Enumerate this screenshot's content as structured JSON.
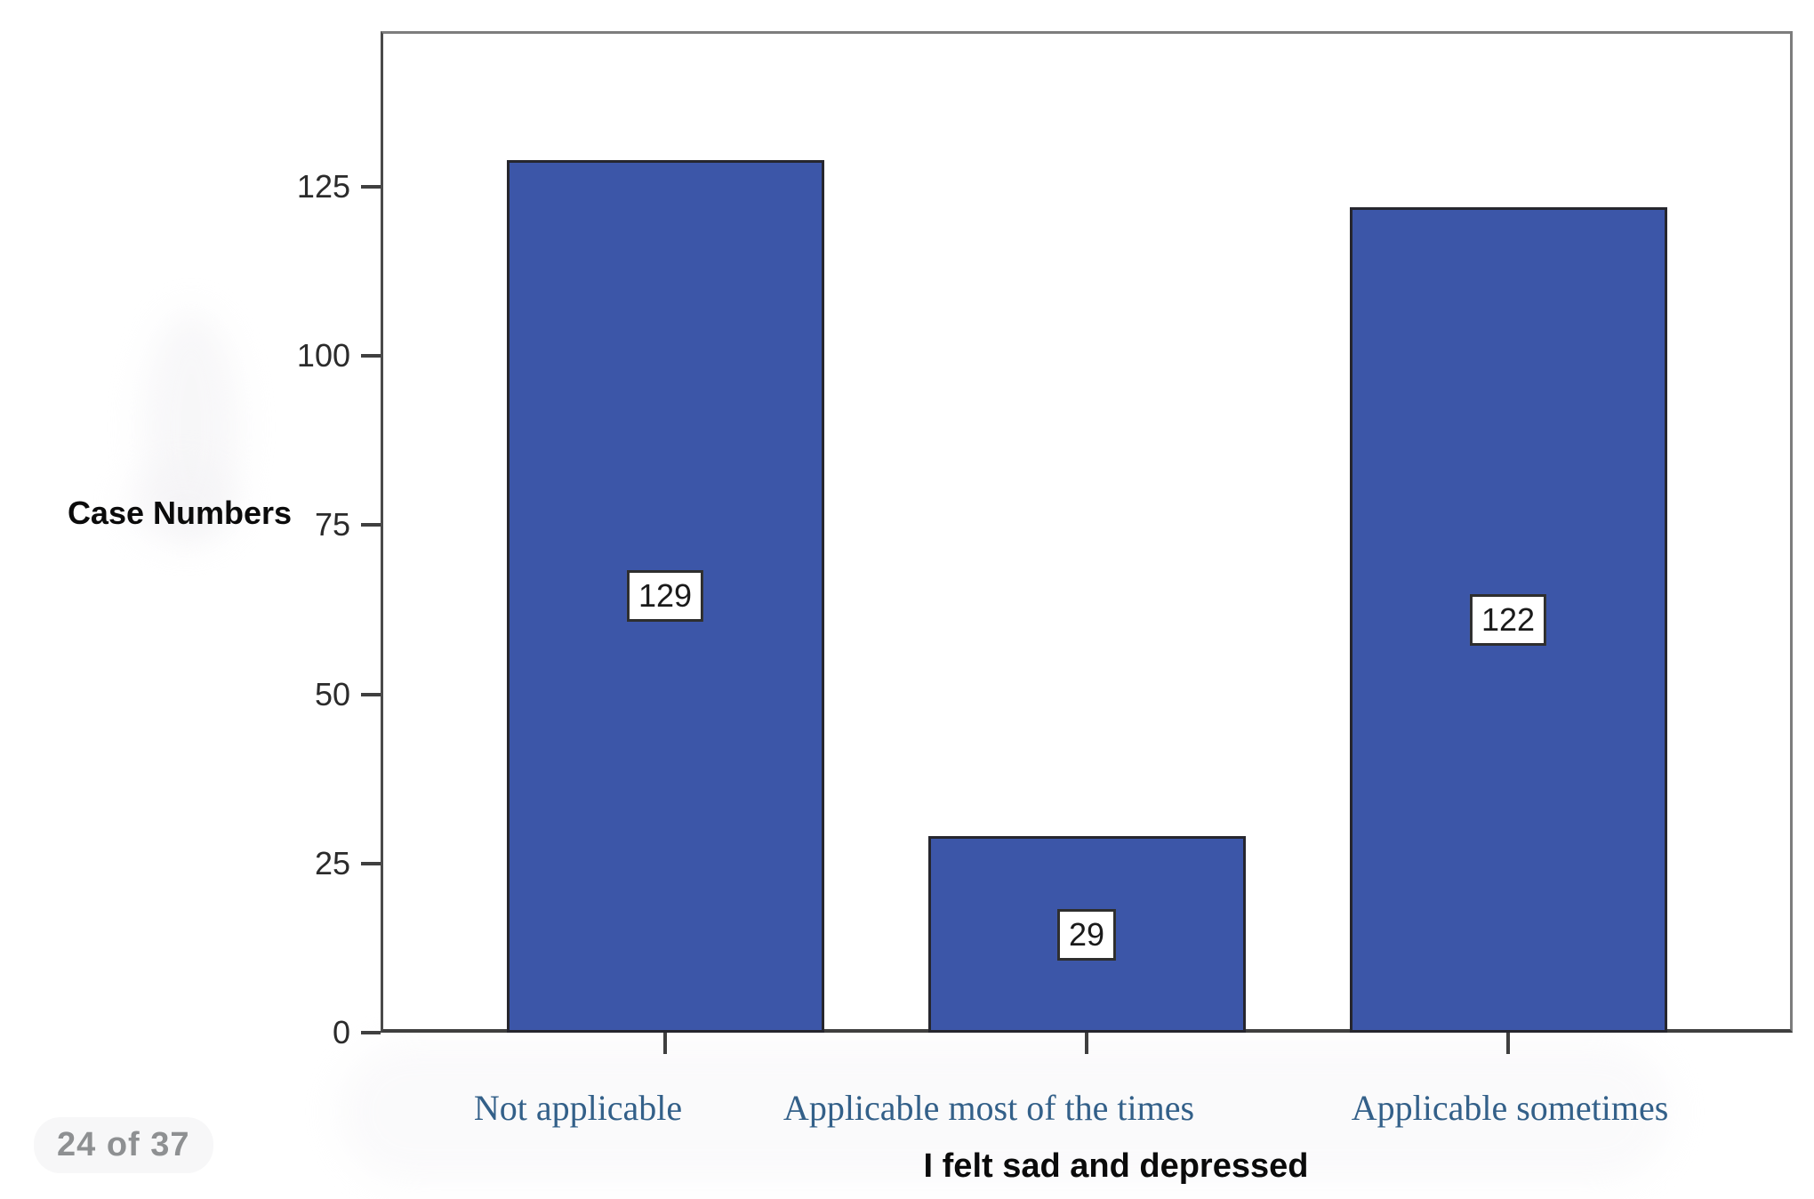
{
  "page": {
    "page_indicator": "24 of 37"
  },
  "chart_data": {
    "type": "bar",
    "title": "",
    "categories": [
      "Not applicable",
      "Applicable most of the times",
      "Applicable sometimes"
    ],
    "values": [
      129,
      29,
      122
    ],
    "value_labels": [
      "129",
      "29",
      "122"
    ],
    "xlabel": "I felt sad and depressed",
    "ylabel": "Case Numbers",
    "yticks": [
      0,
      25,
      50,
      75,
      100,
      125
    ],
    "ylim": [
      0,
      148
    ],
    "grid": false,
    "legend": "none",
    "colors": {
      "bar_fill": "#3C56A8",
      "bar_border": "#26262E",
      "category_label": "#336089",
      "frame_border": "#7D7D7D",
      "axis_line": "#3F3F3F",
      "tick_label": "#2B2B2B",
      "axis_title": "#0B0B0B",
      "value_label_bg": "#FFFFFF",
      "value_label_border": "#2E2E2E",
      "page_indicator_text": "#8E9092"
    }
  }
}
